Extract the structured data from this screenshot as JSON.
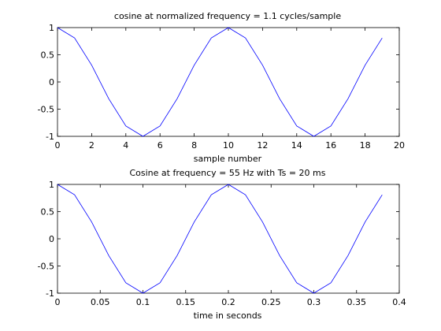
{
  "chart_data": [
    {
      "type": "line",
      "title": "cosine at normalized frequency = 1.1 cycles/sample",
      "xlabel": "sample number",
      "ylabel": "",
      "xlim": [
        0,
        20
      ],
      "ylim": [
        -1,
        1
      ],
      "xticks": [
        0,
        2,
        4,
        6,
        8,
        10,
        12,
        14,
        16,
        18,
        20
      ],
      "xtick_labels": [
        "0",
        "2",
        "4",
        "6",
        "8",
        "10",
        "12",
        "14",
        "16",
        "18",
        "20"
      ],
      "yticks": [
        -1,
        -0.5,
        0,
        0.5,
        1
      ],
      "ytick_labels": [
        "-1",
        "-0.5",
        "0",
        "0.5",
        "1"
      ],
      "grid": false,
      "line_color": "#0000ff",
      "series": [
        {
          "x": [
            0,
            1,
            2,
            3,
            4,
            5,
            6,
            7,
            8,
            9,
            10,
            11,
            12,
            13,
            14,
            15,
            16,
            17,
            18,
            19
          ],
          "values": [
            1,
            0.809,
            0.309,
            -0.309,
            -0.809,
            -1,
            -0.809,
            -0.309,
            0.309,
            0.809,
            1,
            0.809,
            0.309,
            -0.309,
            -0.809,
            -1,
            -0.809,
            -0.309,
            0.309,
            0.809
          ]
        }
      ]
    },
    {
      "type": "line",
      "title": "Cosine at frequency = 55 Hz with Ts = 20 ms",
      "xlabel": "time in seconds",
      "ylabel": "",
      "xlim": [
        0,
        0.4
      ],
      "ylim": [
        -1,
        1
      ],
      "xticks": [
        0,
        0.05,
        0.1,
        0.15,
        0.2,
        0.25,
        0.3,
        0.35,
        0.4
      ],
      "xtick_labels": [
        "0",
        "0.05",
        "0.1",
        "0.15",
        "0.2",
        "0.25",
        "0.3",
        "0.35",
        "0.4"
      ],
      "yticks": [
        -1,
        -0.5,
        0,
        0.5,
        1
      ],
      "ytick_labels": [
        "-1",
        "-0.5",
        "0",
        "0.5",
        "1"
      ],
      "grid": false,
      "line_color": "#0000ff",
      "series": [
        {
          "x": [
            0,
            0.02,
            0.04,
            0.06,
            0.08,
            0.1,
            0.12,
            0.14,
            0.16,
            0.18,
            0.2,
            0.22,
            0.24,
            0.26,
            0.28,
            0.3,
            0.32,
            0.34,
            0.36,
            0.38
          ],
          "values": [
            1,
            0.809,
            0.309,
            -0.309,
            -0.809,
            -1,
            -0.809,
            -0.309,
            0.309,
            0.809,
            1,
            0.809,
            0.309,
            -0.309,
            -0.809,
            -1,
            -0.809,
            -0.309,
            0.309,
            0.809
          ]
        }
      ]
    }
  ]
}
